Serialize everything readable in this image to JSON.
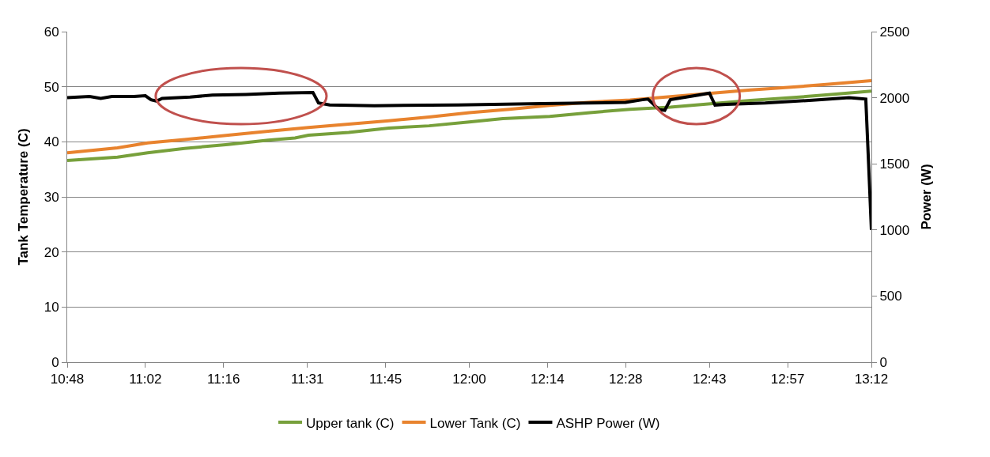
{
  "chart_data": {
    "type": "line",
    "ylabel": "Tank Temperature (C)",
    "y2label": "Power (W)",
    "xlim": [
      10.8,
      13.2
    ],
    "xticks": [
      {
        "value": 10.8,
        "label": "10:48"
      },
      {
        "value": 11.0333,
        "label": "11:02"
      },
      {
        "value": 11.2667,
        "label": "11:16"
      },
      {
        "value": 11.5167,
        "label": "11:31"
      },
      {
        "value": 11.75,
        "label": "11:45"
      },
      {
        "value": 12.0,
        "label": "12:00"
      },
      {
        "value": 12.2333,
        "label": "12:14"
      },
      {
        "value": 12.4667,
        "label": "12:28"
      },
      {
        "value": 12.7167,
        "label": "12:43"
      },
      {
        "value": 12.95,
        "label": "12:57"
      },
      {
        "value": 13.2,
        "label": "13:12"
      }
    ],
    "ylim": [
      0,
      60
    ],
    "yticks": [
      0,
      10,
      20,
      30,
      40,
      50,
      60
    ],
    "y2lim": [
      0,
      2500
    ],
    "y2ticks": [
      0,
      500,
      1000,
      1500,
      2000,
      2500
    ],
    "grid": "y",
    "legend": "bottom",
    "marker": "none",
    "series": [
      {
        "name": "Upper tank (C)",
        "color": "#77a03b",
        "x": [
          10.8,
          10.95,
          11.04,
          11.15,
          11.28,
          11.4,
          11.48,
          11.52,
          11.64,
          11.76,
          11.88,
          12.0,
          12.1,
          12.24,
          12.36,
          12.48,
          12.6,
          12.72,
          12.84,
          12.96,
          13.08,
          13.2
        ],
        "values": [
          36.6,
          37.2,
          38.0,
          38.8,
          39.5,
          40.3,
          40.7,
          41.2,
          41.7,
          42.5,
          42.9,
          43.6,
          44.2,
          44.6,
          45.3,
          45.9,
          46.3,
          46.9,
          47.5,
          48.0,
          48.6,
          49.2
        ]
      },
      {
        "name": "Lower Tank (C)",
        "color": "#e8832e",
        "x": [
          10.8,
          10.95,
          11.04,
          11.15,
          11.28,
          11.4,
          11.52,
          11.64,
          11.76,
          11.88,
          12.0,
          12.12,
          12.24,
          12.36,
          12.48,
          12.6,
          12.72,
          12.84,
          12.96,
          13.08,
          13.2
        ],
        "values": [
          38.0,
          38.9,
          39.8,
          40.4,
          41.2,
          41.9,
          42.6,
          43.2,
          43.8,
          44.5,
          45.3,
          45.9,
          46.6,
          47.2,
          47.6,
          48.2,
          48.8,
          49.4,
          49.9,
          50.5,
          51.1
        ]
      },
      {
        "name": "ASHP Power (W)",
        "color": "#000000",
        "axis": "y2",
        "x": [
          10.8,
          10.8667,
          10.9,
          10.9333,
          11.0,
          11.0333,
          11.05,
          11.0667,
          11.0833,
          11.1667,
          11.2333,
          11.3333,
          11.4333,
          11.5333,
          11.55,
          11.5833,
          11.7167,
          11.9667,
          12.2167,
          12.4667,
          12.5167,
          12.5333,
          12.5667,
          12.5833,
          12.6,
          12.6833,
          12.7167,
          12.7333,
          12.7667,
          12.8833,
          13.05,
          13.1333,
          13.1833,
          13.1917,
          13.2
        ],
        "values": [
          2000,
          2010,
          1995,
          2010,
          2010,
          2015,
          1985,
          1975,
          1995,
          2005,
          2020,
          2025,
          2035,
          2040,
          1960,
          1945,
          1940,
          1945,
          1955,
          1965,
          1985,
          1990,
          1910,
          1905,
          1985,
          2020,
          2035,
          1945,
          1950,
          1960,
          1985,
          2000,
          1990,
          1500,
          1000
        ]
      }
    ]
  }
}
